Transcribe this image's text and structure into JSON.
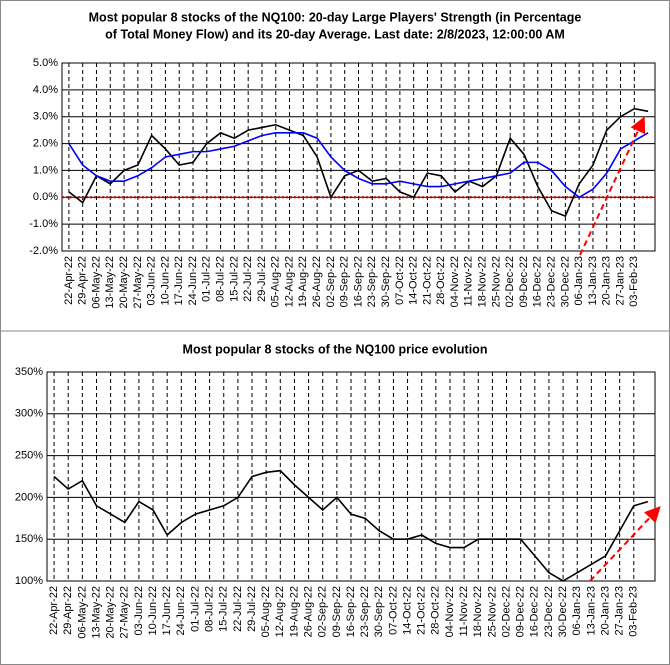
{
  "chart_data": [
    {
      "type": "line",
      "title": [
        "Most popular 8 stocks of the NQ100: 20-day Large Players' Strength (in Percentage",
        "of Total Money Flow) and its 20-day Average. Last date: 2/8/2023, 12:00:00 AM"
      ],
      "categories": [
        "22-Apr-22",
        "29-Apr-22",
        "06-May-22",
        "13-May-22",
        "20-May-22",
        "27-May-22",
        "03-Jun-22",
        "10-Jun-22",
        "17-Jun-22",
        "24-Jun-22",
        "01-Jul-22",
        "08-Jul-22",
        "15-Jul-22",
        "22-Jul-22",
        "29-Jul-22",
        "05-Aug-22",
        "12-Aug-22",
        "19-Aug-22",
        "26-Aug-22",
        "02-Sep-22",
        "09-Sep-22",
        "16-Sep-22",
        "23-Sep-22",
        "30-Sep-22",
        "07-Oct-22",
        "14-Oct-22",
        "21-Oct-22",
        "28-Oct-22",
        "04-Nov-22",
        "11-Nov-22",
        "18-Nov-22",
        "25-Nov-22",
        "02-Dec-22",
        "09-Dec-22",
        "16-Dec-22",
        "23-Dec-22",
        "30-Dec-22",
        "06-Jan-23",
        "13-Jan-23",
        "20-Jan-23",
        "27-Jan-23",
        "03-Feb-23",
        null
      ],
      "series": [
        {
          "color": "#000000",
          "values": [
            0.2,
            -0.2,
            0.8,
            0.5,
            1.0,
            1.2,
            2.3,
            1.8,
            1.2,
            1.3,
            2.0,
            2.4,
            2.2,
            2.5,
            2.6,
            2.7,
            2.5,
            2.3,
            1.5,
            0.0,
            0.8,
            1.0,
            0.6,
            0.7,
            0.2,
            0.0,
            0.9,
            0.8,
            0.2,
            0.6,
            0.4,
            0.8,
            2.2,
            1.6,
            0.4,
            -0.5,
            -0.7,
            0.5,
            1.2,
            2.5,
            3.0,
            3.3,
            3.2
          ]
        },
        {
          "color": "#0000ff",
          "values": [
            2.0,
            1.2,
            0.8,
            0.6,
            0.6,
            0.8,
            1.1,
            1.5,
            1.6,
            1.7,
            1.7,
            1.8,
            1.9,
            2.1,
            2.3,
            2.4,
            2.4,
            2.4,
            2.2,
            1.5,
            1.0,
            0.7,
            0.5,
            0.5,
            0.6,
            0.5,
            0.4,
            0.4,
            0.5,
            0.6,
            0.7,
            0.8,
            0.9,
            1.3,
            1.3,
            1.0,
            0.4,
            0.0,
            0.3,
            0.9,
            1.8,
            2.1,
            2.4
          ]
        }
      ],
      "ylim": [
        -2,
        5
      ],
      "yticks": [
        {
          "value": -2,
          "label": "-2.0%"
        },
        {
          "value": -1,
          "label": "-1.0%"
        },
        {
          "value": 0,
          "label": "0.0%"
        },
        {
          "value": 1,
          "label": "1.0%"
        },
        {
          "value": 2,
          "label": "2.0%"
        },
        {
          "value": 3,
          "label": "3.0%"
        },
        {
          "value": 4,
          "label": "4.0%"
        },
        {
          "value": 5,
          "label": "5.0%"
        }
      ],
      "grid": true
    },
    {
      "type": "line",
      "title": [
        "Most popular 8 stocks of the NQ100 price evolution"
      ],
      "categories": [
        "22-Apr-22",
        "29-Apr-22",
        "06-May-22",
        "13-May-22",
        "20-May-22",
        "27-May-22",
        "03-Jun-22",
        "10-Jun-22",
        "17-Jun-22",
        "24-Jun-22",
        "01-Jul-22",
        "08-Jul-22",
        "15-Jul-22",
        "22-Jul-22",
        "29-Jul-22",
        "05-Aug-22",
        "12-Aug-22",
        "19-Aug-22",
        "26-Aug-22",
        "02-Sep-22",
        "09-Sep-22",
        "16-Sep-22",
        "23-Sep-22",
        "30-Sep-22",
        "07-Oct-22",
        "14-Oct-22",
        "21-Oct-22",
        "28-Oct-22",
        "04-Nov-22",
        "11-Nov-22",
        "18-Nov-22",
        "25-Nov-22",
        "02-Dec-22",
        "09-Dec-22",
        "16-Dec-22",
        "23-Dec-22",
        "30-Dec-22",
        "06-Jan-23",
        "13-Jan-23",
        "20-Jan-23",
        "27-Jan-23",
        "03-Feb-23",
        null
      ],
      "series": [
        {
          "color": "#000000",
          "values": [
            225,
            210,
            220,
            190,
            180,
            170,
            195,
            185,
            155,
            170,
            180,
            185,
            190,
            200,
            225,
            230,
            232,
            215,
            200,
            185,
            200,
            180,
            175,
            160,
            150,
            150,
            155,
            145,
            140,
            140,
            150,
            150,
            150,
            150,
            130,
            110,
            100,
            110,
            120,
            130,
            160,
            190,
            195
          ]
        }
      ],
      "ylim": [
        100,
        350
      ],
      "yticks": [
        {
          "value": 100,
          "label": "100%"
        },
        {
          "value": 150,
          "label": "150%"
        },
        {
          "value": 200,
          "label": "200%"
        },
        {
          "value": 250,
          "label": "250%"
        },
        {
          "value": 300,
          "label": "300%"
        },
        {
          "value": 350,
          "label": "350%"
        }
      ],
      "grid": true
    }
  ]
}
